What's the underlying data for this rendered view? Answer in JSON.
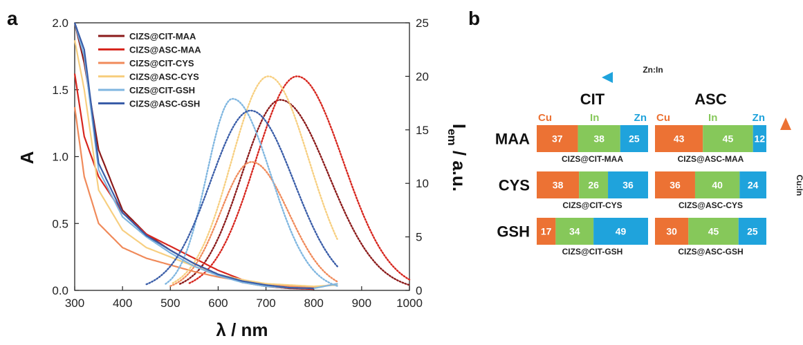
{
  "panel_a": {
    "letter": "a",
    "chart_data": {
      "type": "line",
      "xlabel": "λ / nm",
      "ylabel_left": "A",
      "ylabel_right_main": "I",
      "ylabel_right_sub": "em",
      "ylabel_right_tail": " / a.u.",
      "xlim": [
        300,
        1000
      ],
      "ylim_left": [
        0,
        2.0
      ],
      "ylim_right": [
        0,
        25
      ],
      "x_ticks": [
        "300",
        "400",
        "500",
        "600",
        "700",
        "800",
        "900",
        "1000"
      ],
      "y_left_ticks": [
        "0.0",
        "0.5",
        "1.0",
        "1.5",
        "2.0"
      ],
      "y_right_ticks": [
        "0",
        "5",
        "10",
        "15",
        "20",
        "25"
      ],
      "legend_position": "top-left",
      "series": [
        {
          "name": "CIZS@CIT-MAA",
          "color": "#8b1a1a",
          "absorption": [
            [
              300,
              2.0
            ],
            [
              320,
              1.7
            ],
            [
              350,
              1.05
            ],
            [
              400,
              0.6
            ],
            [
              450,
              0.42
            ],
            [
              500,
              0.3
            ],
            [
              550,
              0.2
            ],
            [
              600,
              0.12
            ],
            [
              650,
              0.06
            ],
            [
              700,
              0.03
            ],
            [
              750,
              0.015
            ],
            [
              800,
              0.01
            ]
          ],
          "emission": {
            "peak": 730,
            "max": 17.8,
            "start": 520,
            "end": 1000,
            "end_value": 0.5
          }
        },
        {
          "name": "CIZS@ASC-MAA",
          "color": "#d7261e",
          "absorption": [
            [
              300,
              1.62
            ],
            [
              320,
              1.15
            ],
            [
              350,
              0.85
            ],
            [
              400,
              0.58
            ],
            [
              450,
              0.42
            ],
            [
              500,
              0.33
            ],
            [
              550,
              0.24
            ],
            [
              600,
              0.15
            ],
            [
              650,
              0.08
            ],
            [
              700,
              0.04
            ],
            [
              750,
              0.02
            ],
            [
              800,
              0.01
            ]
          ],
          "emission": {
            "peak": 765,
            "max": 20.0,
            "start": 540,
            "end": 1000,
            "end_value": 1.0
          }
        },
        {
          "name": "CIZS@CIT-CYS",
          "color": "#f08a5a",
          "absorption": [
            [
              300,
              1.37
            ],
            [
              320,
              0.85
            ],
            [
              350,
              0.5
            ],
            [
              400,
              0.32
            ],
            [
              450,
              0.24
            ],
            [
              500,
              0.19
            ],
            [
              550,
              0.14
            ],
            [
              600,
              0.1
            ],
            [
              650,
              0.07
            ],
            [
              700,
              0.05
            ],
            [
              750,
              0.03
            ],
            [
              800,
              0.02
            ],
            [
              850,
              0.05
            ]
          ],
          "emission": {
            "peak": 670,
            "max": 12.0,
            "start": 500,
            "end": 850,
            "end_value": 0.8
          }
        },
        {
          "name": "CIZS@ASC-CYS",
          "color": "#f7cf80",
          "absorption": [
            [
              300,
              1.87
            ],
            [
              320,
              1.5
            ],
            [
              350,
              0.75
            ],
            [
              400,
              0.45
            ],
            [
              450,
              0.32
            ],
            [
              500,
              0.25
            ],
            [
              550,
              0.18
            ],
            [
              600,
              0.12
            ],
            [
              650,
              0.08
            ],
            [
              700,
              0.05
            ],
            [
              750,
              0.04
            ],
            [
              800,
              0.03
            ],
            [
              850,
              0.04
            ]
          ],
          "emission": {
            "peak": 705,
            "max": 20.0,
            "start": 505,
            "end": 850,
            "end_value": 4.7
          }
        },
        {
          "name": "CIZS@CIT-GSH",
          "color": "#7fb6e0",
          "absorption": [
            [
              300,
              2.0
            ],
            [
              320,
              1.75
            ],
            [
              350,
              0.9
            ],
            [
              400,
              0.55
            ],
            [
              450,
              0.4
            ],
            [
              500,
              0.28
            ],
            [
              550,
              0.18
            ],
            [
              600,
              0.11
            ],
            [
              650,
              0.06
            ],
            [
              700,
              0.03
            ],
            [
              750,
              0.02
            ],
            [
              800,
              0.015
            ],
            [
              850,
              0.05
            ]
          ],
          "emission": {
            "peak": 630,
            "max": 17.9,
            "start": 490,
            "end": 850,
            "end_value": 0.4
          }
        },
        {
          "name": "CIZS@ASC-GSH",
          "color": "#3a5da8",
          "absorption": [
            [
              300,
              2.0
            ],
            [
              320,
              1.8
            ],
            [
              350,
              0.95
            ],
            [
              400,
              0.58
            ],
            [
              450,
              0.41
            ],
            [
              500,
              0.3
            ],
            [
              550,
              0.2
            ],
            [
              600,
              0.12
            ],
            [
              650,
              0.07
            ],
            [
              700,
              0.04
            ],
            [
              750,
              0.02
            ],
            [
              800,
              0.015
            ]
          ],
          "emission": {
            "peak": 668,
            "max": 16.8,
            "start": 450,
            "end": 850,
            "end_value": 2.2
          }
        }
      ]
    }
  },
  "panel_b": {
    "letter": "b",
    "arrow_top_label": "Zn:In",
    "arrow_right_label": "Cu:In",
    "columns": [
      "CIT",
      "ASC"
    ],
    "element_labels": [
      "Cu",
      "In",
      "Zn"
    ],
    "element_colors": [
      "#ec7234",
      "#86c85a",
      "#1fa3dc"
    ],
    "rows": [
      {
        "name": "MAA",
        "cells": [
          {
            "values": [
              37,
              38,
              25
            ],
            "caption": "CIZS@CIT-MAA"
          },
          {
            "values": [
              43,
              45,
              12
            ],
            "caption": "CIZS@ASC-MAA"
          }
        ]
      },
      {
        "name": "CYS",
        "cells": [
          {
            "values": [
              38,
              26,
              36
            ],
            "caption": "CIZS@CIT-CYS"
          },
          {
            "values": [
              36,
              40,
              24
            ],
            "caption": "CIZS@ASC-CYS"
          }
        ]
      },
      {
        "name": "GSH",
        "cells": [
          {
            "values": [
              17,
              34,
              49
            ],
            "caption": "CIZS@CIT-GSH"
          },
          {
            "values": [
              30,
              45,
              25
            ],
            "caption": "CIZS@ASC-GSH"
          }
        ]
      }
    ]
  }
}
